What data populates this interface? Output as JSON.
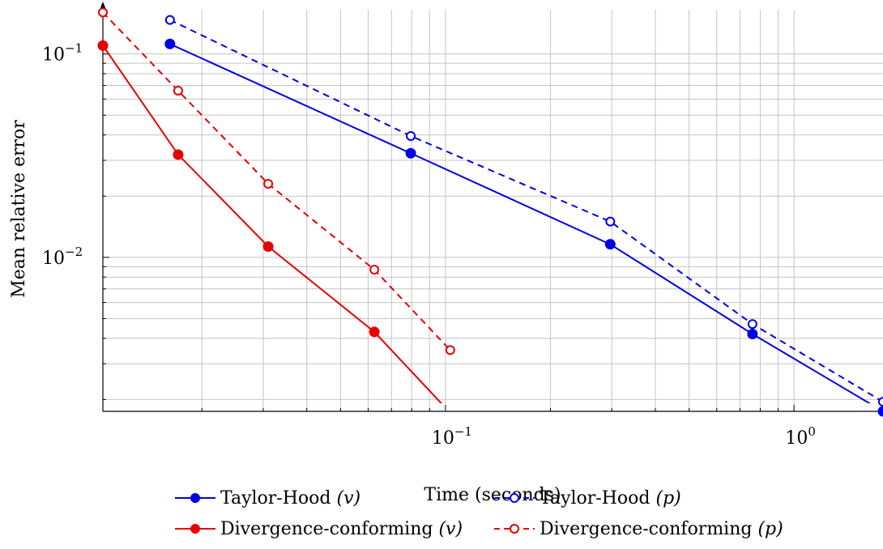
{
  "chart_data": {
    "type": "line",
    "x_scale": "log",
    "y_scale": "log",
    "xlabel": "Time (seconds)",
    "ylabel": "Mean relative error",
    "xlim": [
      0.0104,
      1.8
    ],
    "ylim": [
      0.00175,
      0.165
    ],
    "x_ticks": [
      {
        "value": 0.1,
        "base": "10",
        "exp": "−1"
      },
      {
        "value": 1,
        "base": "10",
        "exp": "0"
      }
    ],
    "y_ticks": [
      {
        "value": 0.1,
        "base": "10",
        "exp": "−1"
      },
      {
        "value": 0.01,
        "base": "10",
        "exp": "−2"
      }
    ],
    "grid": true,
    "legend_position": "bottom",
    "series": [
      {
        "name": "Taylor-Hood (v)",
        "name_main": "Taylor-Hood ",
        "name_var": "(v)",
        "color": "#0000e6",
        "dash": false,
        "marker": "filled",
        "x": [
          0.0162,
          0.0795,
          0.297,
          0.76,
          1.8
        ],
        "y": [
          0.112,
          0.0325,
          0.0116,
          0.0042,
          0.00175
        ]
      },
      {
        "name": "Taylor-Hood (p)",
        "name_main": "Taylor-Hood ",
        "name_var": "(p)",
        "color": "#0000e6",
        "dash": true,
        "marker": "open",
        "x": [
          0.0162,
          0.0795,
          0.297,
          0.76,
          1.8
        ],
        "y": [
          0.147,
          0.0395,
          0.015,
          0.0047,
          0.00195
        ]
      },
      {
        "name": "Divergence-conforming (v)",
        "name_main": "Divergence-conforming ",
        "name_var": "(v)",
        "color": "#e60000",
        "dash": false,
        "marker": "filled",
        "x": [
          0.0104,
          0.0171,
          0.031,
          0.0625,
          0.1032
        ],
        "y": [
          0.11,
          0.032,
          0.0113,
          0.0043,
          0.00172
        ]
      },
      {
        "name": "Divergence-conforming (p)",
        "name_main": "Divergence-conforming ",
        "name_var": "(p)",
        "color": "#e60000",
        "dash": true,
        "marker": "open",
        "x": [
          0.0104,
          0.0171,
          0.031,
          0.0625,
          0.1032
        ],
        "y": [
          0.16,
          0.066,
          0.023,
          0.0087,
          0.0035
        ]
      }
    ]
  }
}
